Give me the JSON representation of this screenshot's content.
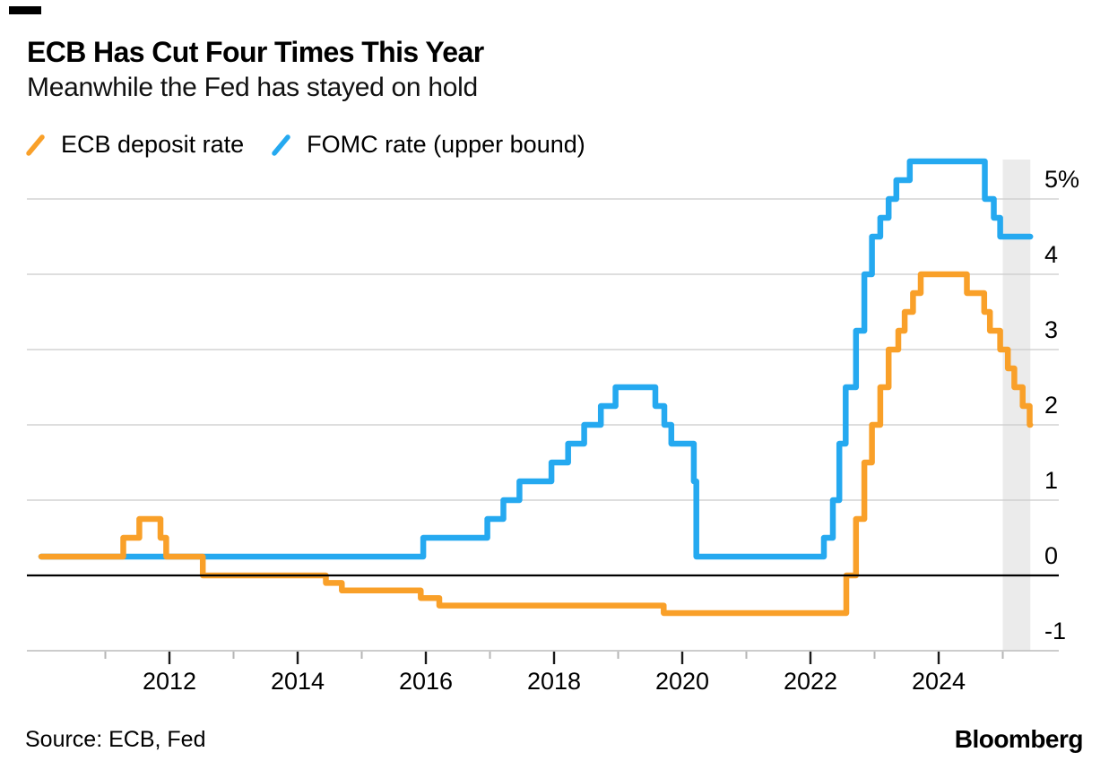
{
  "header": {
    "title": "ECB Has Cut Four Times This Year",
    "subtitle": "Meanwhile the Fed has stayed on hold"
  },
  "legend": [
    {
      "label": "ECB deposit rate",
      "color": "#F9A029"
    },
    {
      "label": "FOMC rate (upper bound)",
      "color": "#25A9F0"
    }
  ],
  "footer": {
    "source": "Source: ECB, Fed",
    "brand": "Bloomberg"
  },
  "colors": {
    "ecb_orange": "#F9A029",
    "fomc_blue": "#25A9F0",
    "gridline": "#CBCBCB",
    "axis_baseline": "#C4C4C4",
    "zero_line": "#000000",
    "highlight_band": "#EBEBEB",
    "major_tick": "#1A1A1A",
    "minor_tick": "#B5B5B5"
  },
  "chart_data": {
    "type": "line",
    "step": true,
    "title": "ECB Has Cut Four Times This Year",
    "subtitle": "Meanwhile the Fed has stayed on hold",
    "unit": "percent",
    "x_domain": [
      2009.78,
      2025.87
    ],
    "x_data_end": 2025.43,
    "ylim": [
      -1,
      5.5
    ],
    "grid": true,
    "legend_position": "top",
    "y_axis_side": "right",
    "y_ticks": [
      {
        "value": 5,
        "label": "5%"
      },
      {
        "value": 4,
        "label": "4"
      },
      {
        "value": 3,
        "label": "3"
      },
      {
        "value": 2,
        "label": "2"
      },
      {
        "value": 1,
        "label": "1"
      },
      {
        "value": 0,
        "label": "0"
      },
      {
        "value": -1,
        "label": "-1"
      }
    ],
    "zero_line_value": 0,
    "x_major_ticks": [
      {
        "year": 2012,
        "label": "2012"
      },
      {
        "year": 2014,
        "label": "2014"
      },
      {
        "year": 2016,
        "label": "2016"
      },
      {
        "year": 2018,
        "label": "2018"
      },
      {
        "year": 2020,
        "label": "2020"
      },
      {
        "year": 2022,
        "label": "2022"
      },
      {
        "year": 2024,
        "label": "2024"
      }
    ],
    "x_minor_ticks": [
      2011,
      2013,
      2015,
      2017,
      2019,
      2021,
      2023,
      2025
    ],
    "highlight_band": {
      "from": 2025.0,
      "to": 2025.43,
      "color": "#EBEBEB"
    },
    "series": [
      {
        "name": "FOMC rate (upper bound)",
        "color": "#25A9F0",
        "points": [
          [
            2010.0,
            0.25
          ],
          [
            2015.96,
            0.5
          ],
          [
            2016.96,
            0.75
          ],
          [
            2017.21,
            1.0
          ],
          [
            2017.46,
            1.25
          ],
          [
            2017.96,
            1.5
          ],
          [
            2018.22,
            1.75
          ],
          [
            2018.47,
            2.0
          ],
          [
            2018.73,
            2.25
          ],
          [
            2018.96,
            2.5
          ],
          [
            2019.58,
            2.25
          ],
          [
            2019.72,
            2.0
          ],
          [
            2019.83,
            1.75
          ],
          [
            2020.18,
            1.25
          ],
          [
            2020.22,
            0.25
          ],
          [
            2022.21,
            0.5
          ],
          [
            2022.35,
            1.0
          ],
          [
            2022.45,
            1.75
          ],
          [
            2022.55,
            2.5
          ],
          [
            2022.71,
            3.25
          ],
          [
            2022.84,
            4.0
          ],
          [
            2022.96,
            4.5
          ],
          [
            2023.09,
            4.75
          ],
          [
            2023.22,
            5.0
          ],
          [
            2023.34,
            5.25
          ],
          [
            2023.55,
            5.5
          ],
          [
            2024.72,
            5.0
          ],
          [
            2024.86,
            4.75
          ],
          [
            2024.96,
            4.5
          ]
        ]
      },
      {
        "name": "ECB deposit rate",
        "color": "#F9A029",
        "points": [
          [
            2010.0,
            0.25
          ],
          [
            2011.28,
            0.5
          ],
          [
            2011.53,
            0.75
          ],
          [
            2011.86,
            0.5
          ],
          [
            2011.95,
            0.25
          ],
          [
            2012.52,
            0.0
          ],
          [
            2014.44,
            -0.1
          ],
          [
            2014.69,
            -0.2
          ],
          [
            2015.92,
            -0.3
          ],
          [
            2016.21,
            -0.4
          ],
          [
            2019.71,
            -0.5
          ],
          [
            2022.56,
            0.0
          ],
          [
            2022.71,
            0.75
          ],
          [
            2022.84,
            1.5
          ],
          [
            2022.96,
            2.0
          ],
          [
            2023.09,
            2.5
          ],
          [
            2023.22,
            3.0
          ],
          [
            2023.37,
            3.25
          ],
          [
            2023.47,
            3.5
          ],
          [
            2023.6,
            3.75
          ],
          [
            2023.72,
            4.0
          ],
          [
            2024.44,
            3.75
          ],
          [
            2024.71,
            3.5
          ],
          [
            2024.8,
            3.25
          ],
          [
            2024.96,
            3.0
          ],
          [
            2025.08,
            2.75
          ],
          [
            2025.18,
            2.5
          ],
          [
            2025.31,
            2.25
          ],
          [
            2025.42,
            2.0
          ]
        ]
      }
    ]
  }
}
